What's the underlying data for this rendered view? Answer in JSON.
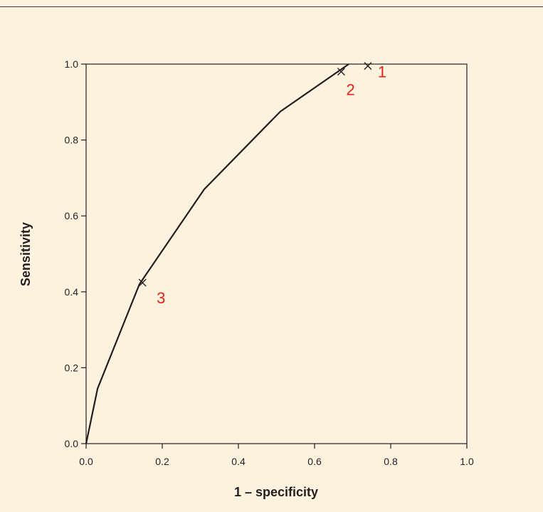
{
  "chart_data": {
    "type": "line",
    "title": "",
    "xlabel": "1 – specificity",
    "ylabel": "Sensitivity",
    "xlim": [
      0.0,
      1.0
    ],
    "ylim": [
      0.0,
      1.0
    ],
    "xticks": [
      "0.0",
      "0.2",
      "0.4",
      "0.6",
      "0.8",
      "1.0"
    ],
    "yticks": [
      "0.0",
      "0.2",
      "0.4",
      "0.6",
      "0.8",
      "1.0"
    ],
    "grid": false,
    "series": [
      {
        "x": [
          0.0,
          0.03,
          0.14,
          0.31,
          0.51,
          0.69
        ],
        "y": [
          0.0,
          0.145,
          0.42,
          0.67,
          0.875,
          1.0
        ]
      }
    ],
    "marked_points": [
      {
        "label": "1",
        "x": 0.74,
        "y": 0.995
      },
      {
        "label": "2",
        "x": 0.67,
        "y": 0.98
      },
      {
        "label": "3",
        "x": 0.148,
        "y": 0.424
      }
    ],
    "colors": {
      "background": "#fdf2de",
      "line": "#231f20",
      "point_label": "#e2231a"
    }
  }
}
